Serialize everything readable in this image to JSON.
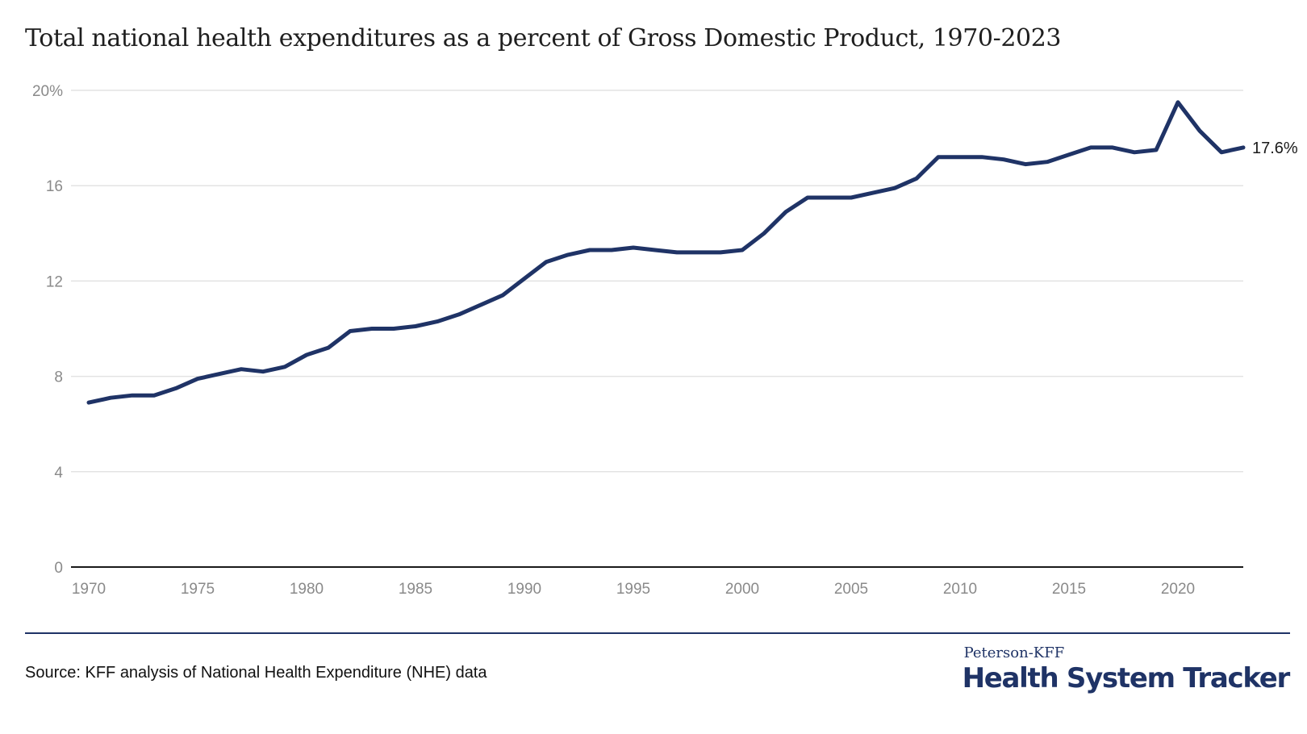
{
  "title": "Total national health expenditures as a percent of Gross Domestic Product, 1970-2023",
  "source": "Source: KFF analysis of National Health Expenditure (NHE) data",
  "logo": {
    "top": "Peterson-KFF",
    "main": "Health System Tracker"
  },
  "colors": {
    "line": "#1f3366",
    "grid": "#e3e3e3",
    "axis": "#1a1a1a",
    "tick_text": "#8a8a8a"
  },
  "chart_data": {
    "type": "line",
    "title": "Total national health expenditures as a percent of Gross Domestic Product, 1970-2023",
    "xlabel": "",
    "ylabel": "",
    "xlim": [
      1970,
      2023
    ],
    "ylim": [
      0,
      20
    ],
    "x_ticks": [
      1970,
      1975,
      1980,
      1985,
      1990,
      1995,
      2000,
      2005,
      2010,
      2015,
      2020
    ],
    "x_tick_labels": [
      "1970",
      "1975",
      "1980",
      "1985",
      "1990",
      "1995",
      "2000",
      "2005",
      "2010",
      "2015",
      "2020"
    ],
    "y_ticks": [
      0,
      4,
      8,
      12,
      16,
      20
    ],
    "y_tick_labels": [
      "0",
      "4",
      "8",
      "12",
      "16",
      "20%"
    ],
    "grid": "horizontal",
    "end_label": "17.6%",
    "series": [
      {
        "x": [
          1970,
          1971,
          1972,
          1973,
          1974,
          1975,
          1976,
          1977,
          1978,
          1979,
          1980,
          1981,
          1982,
          1983,
          1984,
          1985,
          1986,
          1987,
          1988,
          1989,
          1990,
          1991,
          1992,
          1993,
          1994,
          1995,
          1996,
          1997,
          1998,
          1999,
          2000,
          2001,
          2002,
          2003,
          2004,
          2005,
          2006,
          2007,
          2008,
          2009,
          2010,
          2011,
          2012,
          2013,
          2014,
          2015,
          2016,
          2017,
          2018,
          2019,
          2020,
          2021,
          2022,
          2023
        ],
        "values": [
          6.9,
          7.1,
          7.2,
          7.2,
          7.5,
          7.9,
          8.1,
          8.3,
          8.2,
          8.4,
          8.9,
          9.2,
          9.9,
          10.0,
          10.0,
          10.1,
          10.3,
          10.6,
          11.0,
          11.4,
          12.1,
          12.8,
          13.1,
          13.3,
          13.3,
          13.4,
          13.3,
          13.2,
          13.2,
          13.2,
          13.3,
          14.0,
          14.9,
          15.5,
          15.5,
          15.5,
          15.7,
          15.9,
          16.3,
          17.2,
          17.2,
          17.2,
          17.1,
          16.9,
          17.0,
          17.3,
          17.6,
          17.6,
          17.4,
          17.5,
          19.5,
          18.3,
          17.4,
          17.6
        ]
      }
    ]
  }
}
